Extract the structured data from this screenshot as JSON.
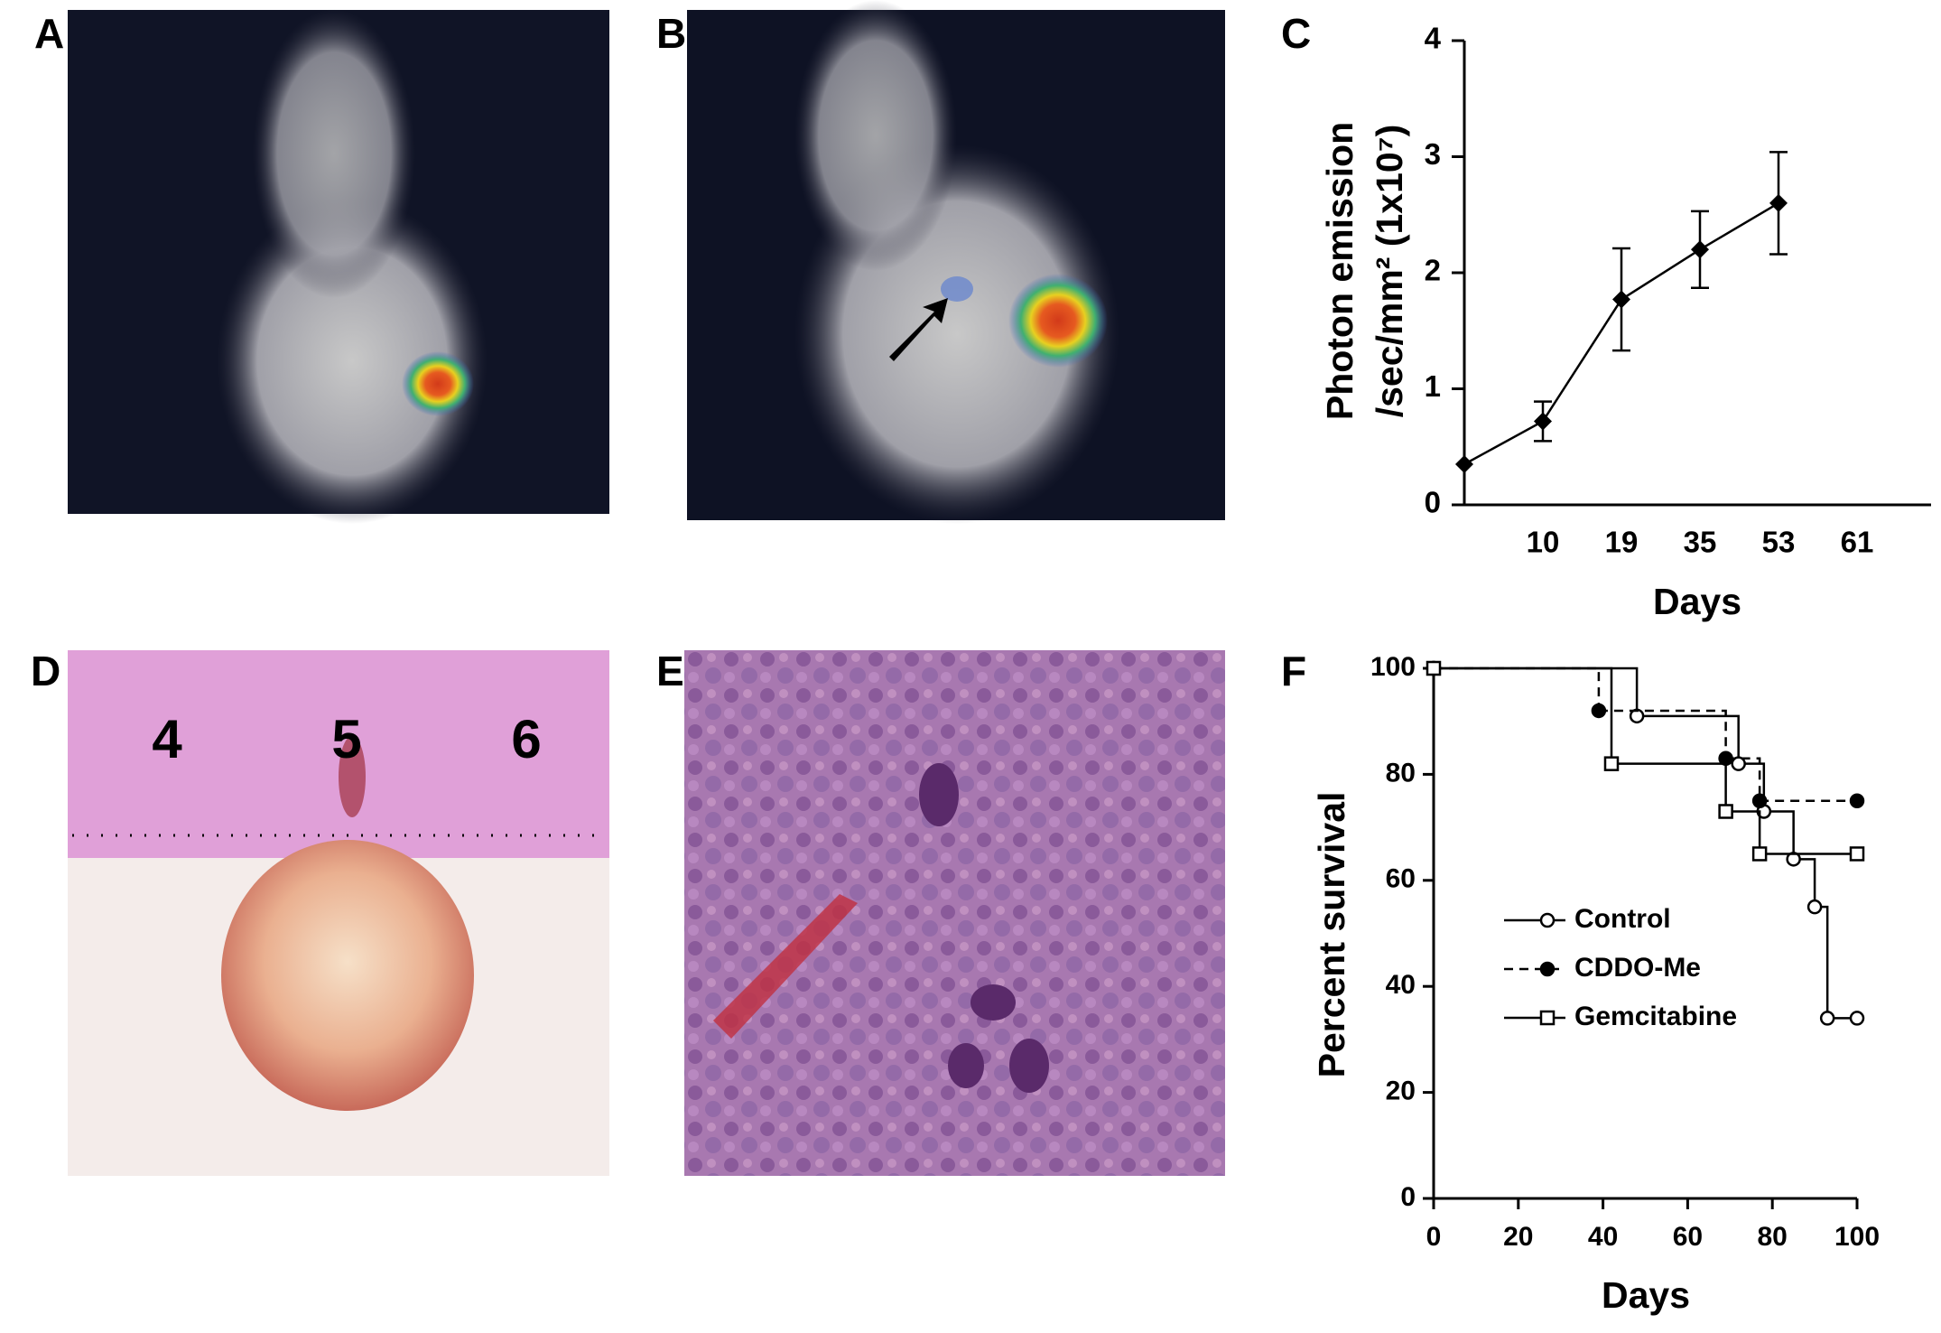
{
  "panels": {
    "labels": [
      "A",
      "B",
      "C",
      "D",
      "E",
      "F"
    ]
  },
  "photo_text": {
    "ruler_labels": [
      "4",
      "5",
      "6"
    ]
  },
  "chart_data": [
    {
      "type": "line",
      "ylabel": [
        "Photon emission",
        "/sec/mm² (1x10⁷)"
      ],
      "xlabel": "Days",
      "categories": [
        null,
        "10",
        "19",
        "35",
        "53",
        "61"
      ],
      "values": [
        0.35,
        0.72,
        1.77,
        2.2,
        2.6,
        null
      ],
      "errors": [
        null,
        0.17,
        0.44,
        0.33,
        0.44,
        null
      ],
      "color": "#000000",
      "marker": "diamond",
      "ylim": [
        0,
        4
      ],
      "yticks": [
        0,
        1,
        2,
        3,
        4
      ]
    },
    {
      "type": "survival",
      "ylabel": "Percent survival",
      "xlabel": "Days",
      "xlim": [
        0,
        100
      ],
      "xticks": [
        0,
        20,
        40,
        60,
        80,
        100
      ],
      "ylim": [
        0,
        100
      ],
      "yticks": [
        0,
        20,
        40,
        60,
        80,
        100
      ],
      "series": [
        {
          "name": "Control",
          "color": "#000000",
          "line_style": "solid",
          "marker": "circle-open",
          "x": [
            0,
            48,
            72,
            78,
            85,
            90,
            93,
            100
          ],
          "values": [
            100,
            91,
            82,
            73,
            64,
            55,
            34,
            34
          ]
        },
        {
          "name": "CDDO-Me",
          "color": "#000000",
          "line_style": "dashed",
          "marker": "circle-filled",
          "x": [
            0,
            39,
            69,
            77,
            100
          ],
          "values": [
            100,
            92,
            83,
            75,
            75
          ]
        },
        {
          "name": "Gemcitabine",
          "color": "#000000",
          "line_style": "solid",
          "marker": "square-open",
          "x": [
            0,
            42,
            69,
            77,
            100
          ],
          "values": [
            100,
            82,
            73,
            65,
            65
          ]
        }
      ]
    }
  ]
}
